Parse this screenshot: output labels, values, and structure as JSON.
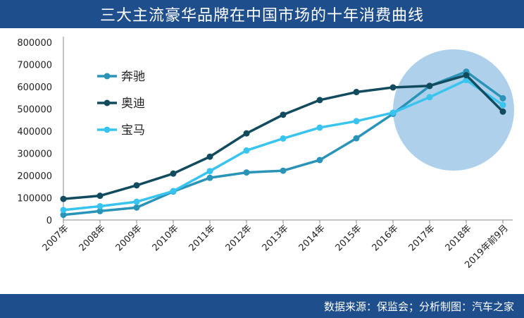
{
  "header": {
    "title": "三大主流豪华品牌在中国市场的十年消费曲线"
  },
  "footer": {
    "source": "数据来源：保监会；分析制图：汽车之家"
  },
  "chart_data": {
    "type": "line",
    "title": "三大主流豪华品牌在中国市场的十年消费曲线",
    "categories": [
      "2007年",
      "2008年",
      "2009年",
      "2010年",
      "2011年",
      "2012年",
      "2013年",
      "2014年",
      "2015年",
      "2016年",
      "2017年",
      "2018年",
      "2019年前9月"
    ],
    "series": [
      {
        "name": "奔驰",
        "color": "#2a93b8",
        "values": [
          23000,
          40000,
          56000,
          128000,
          190000,
          214000,
          222000,
          270000,
          368000,
          478000,
          603000,
          668000,
          548000
        ]
      },
      {
        "name": "奥迪",
        "color": "#134b5e",
        "values": [
          95000,
          109000,
          156000,
          209000,
          285000,
          390000,
          474000,
          540000,
          576000,
          597000,
          604000,
          652000,
          488000
        ]
      },
      {
        "name": "宝马",
        "color": "#38c4ee",
        "values": [
          45000,
          62000,
          82000,
          130000,
          220000,
          313000,
          367000,
          416000,
          445000,
          483000,
          553000,
          630000,
          518000
        ]
      }
    ],
    "ylim": [
      0,
      800000
    ],
    "yticks": [
      0,
      100000,
      200000,
      300000,
      400000,
      500000,
      600000,
      700000,
      800000
    ],
    "legend": "left-inside",
    "grid": false,
    "highlight": {
      "shape": "circle",
      "color": "#aed0ea",
      "from_category": "2016年",
      "to_category": "2019年前9月"
    }
  }
}
